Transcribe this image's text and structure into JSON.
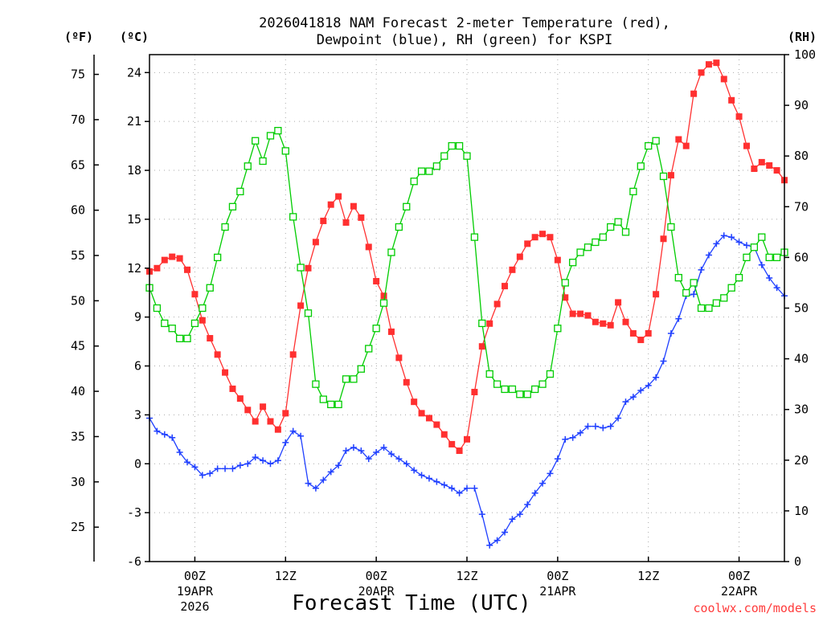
{
  "chart_data": {
    "type": "line",
    "title_line1": "2026041818 NAM Forecast 2-meter Temperature (red),",
    "title_line2": "Dewpoint (blue), RH (green) for KSPI",
    "xlabel": "Forecast Time (UTC)",
    "credit": "coolwx.com/models",
    "unit_f": "(ºF)",
    "unit_c": "(ºC)",
    "unit_rh": "(RH)",
    "ylim_c": [
      -6,
      25.1
    ],
    "ylim_rh": [
      0,
      100
    ],
    "yticks_c": [
      -6,
      -3,
      0,
      3,
      6,
      9,
      12,
      15,
      18,
      21,
      24
    ],
    "yticks_f": [
      25,
      30,
      35,
      40,
      45,
      50,
      55,
      60,
      65,
      70,
      75
    ],
    "yticks_rh": [
      0,
      10,
      20,
      30,
      40,
      50,
      60,
      70,
      80,
      90,
      100
    ],
    "x_start_hour": 18,
    "x_end_hour": 102,
    "x_ticks": [
      {
        "hour": 24,
        "label": "00Z",
        "sub1": "19APR",
        "sub2": "2026"
      },
      {
        "hour": 36,
        "label": "12Z",
        "sub1": "",
        "sub2": ""
      },
      {
        "hour": 48,
        "label": "00Z",
        "sub1": "20APR",
        "sub2": ""
      },
      {
        "hour": 60,
        "label": "12Z",
        "sub1": "",
        "sub2": ""
      },
      {
        "hour": 72,
        "label": "00Z",
        "sub1": "21APR",
        "sub2": ""
      },
      {
        "hour": 84,
        "label": "12Z",
        "sub1": "",
        "sub2": ""
      },
      {
        "hour": 96,
        "label": "00Z",
        "sub1": "22APR",
        "sub2": ""
      }
    ],
    "hours": [
      18,
      19,
      20,
      21,
      22,
      23,
      24,
      25,
      26,
      27,
      28,
      29,
      30,
      31,
      32,
      33,
      34,
      35,
      36,
      37,
      38,
      39,
      40,
      41,
      42,
      43,
      44,
      45,
      46,
      47,
      48,
      49,
      50,
      51,
      52,
      53,
      54,
      55,
      56,
      57,
      58,
      59,
      60,
      61,
      62,
      63,
      64,
      65,
      66,
      67,
      68,
      69,
      70,
      71,
      72,
      73,
      74,
      75,
      76,
      77,
      78,
      79,
      80,
      81,
      82,
      83,
      84,
      85,
      86,
      87,
      88,
      89,
      90,
      91,
      92,
      93,
      94,
      95,
      96,
      97,
      98,
      99,
      100,
      101,
      102
    ],
    "series": [
      {
        "name": "2-meter Temperature",
        "unit": "C",
        "color": "#ff3030",
        "marker": "filled-square",
        "values": [
          11.8,
          12.0,
          12.5,
          12.7,
          12.6,
          11.9,
          10.4,
          8.8,
          7.7,
          6.7,
          5.6,
          4.6,
          4.0,
          3.3,
          2.6,
          3.5,
          2.6,
          2.1,
          3.1,
          6.7,
          9.7,
          12.0,
          13.6,
          14.9,
          15.9,
          16.4,
          14.8,
          15.8,
          15.1,
          13.3,
          11.2,
          10.3,
          8.1,
          6.5,
          5.0,
          3.8,
          3.1,
          2.8,
          2.4,
          1.8,
          1.2,
          0.8,
          1.5,
          4.4,
          7.2,
          8.6,
          9.8,
          10.9,
          11.9,
          12.7,
          13.5,
          13.9,
          14.1,
          13.9,
          12.5,
          10.2,
          9.2,
          9.2,
          9.1,
          8.7,
          8.6,
          8.5,
          9.9,
          8.7,
          8.0,
          7.6,
          8.0,
          10.4,
          13.8,
          17.7,
          19.9,
          19.5,
          22.7,
          24.0,
          24.5,
          24.6,
          23.6,
          22.3,
          21.3,
          19.5,
          18.1,
          18.5,
          18.3,
          18.0,
          17.4
        ]
      },
      {
        "name": "Dewpoint",
        "unit": "C",
        "color": "#2040ff",
        "marker": "plus",
        "values": [
          2.8,
          2.0,
          1.8,
          1.6,
          0.7,
          0.1,
          -0.2,
          -0.7,
          -0.6,
          -0.3,
          -0.3,
          -0.3,
          -0.1,
          0.0,
          0.4,
          0.2,
          0.0,
          0.2,
          1.3,
          2.0,
          1.7,
          -1.2,
          -1.5,
          -1.0,
          -0.5,
          -0.1,
          0.8,
          1.0,
          0.8,
          0.3,
          0.7,
          1.0,
          0.6,
          0.3,
          0.0,
          -0.4,
          -0.7,
          -0.9,
          -1.1,
          -1.3,
          -1.5,
          -1.8,
          -1.5,
          -1.5,
          -3.1,
          -5.0,
          -4.7,
          -4.2,
          -3.4,
          -3.1,
          -2.5,
          -1.8,
          -1.2,
          -0.6,
          0.3,
          1.5,
          1.6,
          1.9,
          2.3,
          2.3,
          2.2,
          2.3,
          2.8,
          3.8,
          4.1,
          4.5,
          4.8,
          5.3,
          6.3,
          8.0,
          8.9,
          10.3,
          10.4,
          11.9,
          12.8,
          13.5,
          14.0,
          13.9,
          13.6,
          13.4,
          13.3,
          12.2,
          11.4,
          10.8,
          10.3
        ]
      },
      {
        "name": "RH",
        "unit": "%",
        "color": "#00cc00",
        "marker": "open-square",
        "values": [
          54,
          50,
          47,
          46,
          44,
          44,
          47,
          50,
          54,
          60,
          66,
          70,
          73,
          78,
          83,
          79,
          84,
          85,
          81,
          68,
          58,
          49,
          35,
          32,
          31,
          31,
          36,
          36,
          38,
          42,
          46,
          51,
          61,
          66,
          70,
          75,
          77,
          77,
          78,
          80,
          82,
          82,
          80,
          64,
          47,
          37,
          35,
          34,
          34,
          33,
          33,
          34,
          35,
          37,
          46,
          55,
          59,
          61,
          62,
          63,
          64,
          66,
          67,
          65,
          73,
          78,
          82,
          83,
          76,
          66,
          56,
          53,
          55,
          50,
          50,
          51,
          52,
          54,
          56,
          60,
          62,
          64,
          60,
          60,
          61
        ]
      }
    ]
  }
}
